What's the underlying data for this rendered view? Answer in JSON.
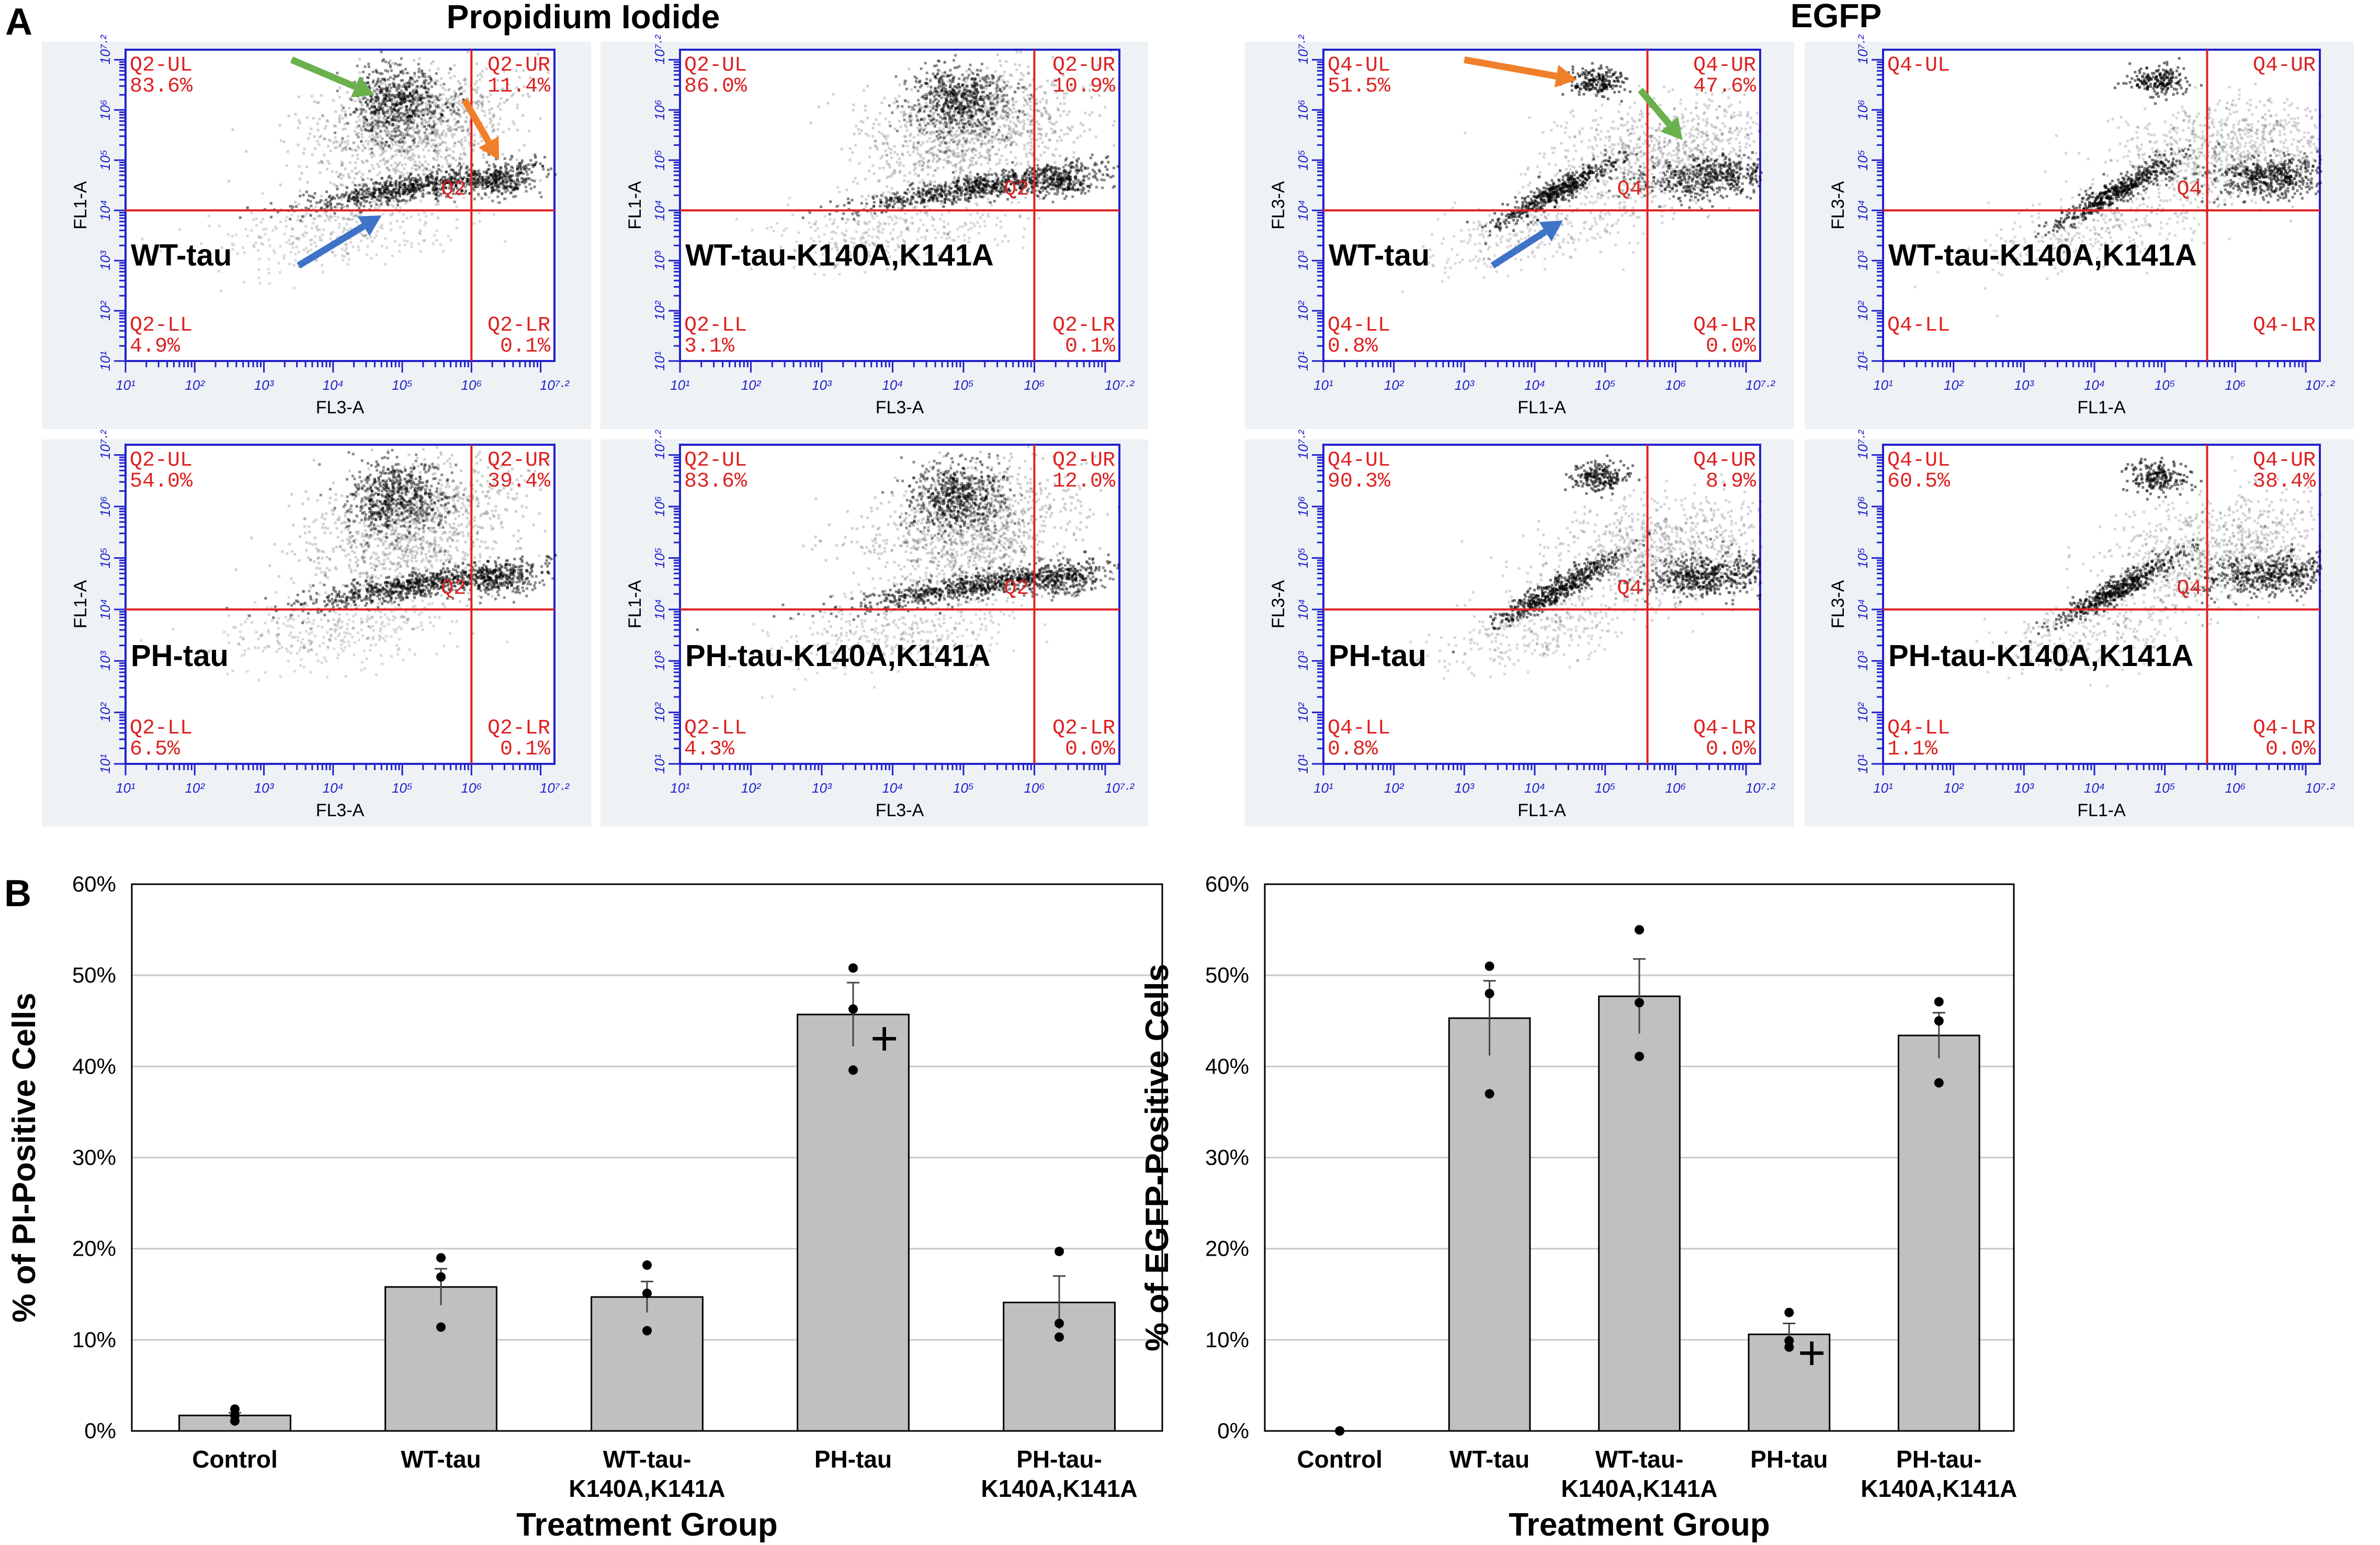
{
  "panel_a": {
    "letter": "A",
    "pi_title": "Propidium Iodide",
    "egfp_title": "EGFP",
    "flow_plots": [
      {
        "group": "pi",
        "row": 0,
        "col": 0,
        "sample": "WT-tau",
        "xlabel": "FL3-A",
        "ylabel": "FL1-A",
        "gate": "Q2",
        "ul": "Q2-UL",
        "ur": "Q2-UR",
        "ll": "Q2-LL",
        "lr": "Q2-LR",
        "ul_pct": "83.6%",
        "ur_pct": "11.4%",
        "ll_pct": "4.9%",
        "lr_pct": "0.1%",
        "arrows": [
          "green",
          "orange",
          "blue"
        ]
      },
      {
        "group": "pi",
        "row": 0,
        "col": 1,
        "sample": "WT-tau-K140A,K141A",
        "xlabel": "FL3-A",
        "ylabel": "FL1-A",
        "gate": "Q2",
        "ul": "Q2-UL",
        "ur": "Q2-UR",
        "ll": "Q2-LL",
        "lr": "Q2-LR",
        "ul_pct": "86.0%",
        "ur_pct": "10.9%",
        "ll_pct": "3.1%",
        "lr_pct": "0.1%",
        "arrows": []
      },
      {
        "group": "pi",
        "row": 1,
        "col": 0,
        "sample": "PH-tau",
        "xlabel": "FL3-A",
        "ylabel": "FL1-A",
        "gate": "Q2",
        "ul": "Q2-UL",
        "ur": "Q2-UR",
        "ll": "Q2-LL",
        "lr": "Q2-LR",
        "ul_pct": "54.0%",
        "ur_pct": "39.4%",
        "ll_pct": "6.5%",
        "lr_pct": "0.1%",
        "arrows": []
      },
      {
        "group": "pi",
        "row": 1,
        "col": 1,
        "sample": "PH-tau-K140A,K141A",
        "xlabel": "FL3-A",
        "ylabel": "FL1-A",
        "gate": "Q2",
        "ul": "Q2-UL",
        "ur": "Q2-UR",
        "ll": "Q2-LL",
        "lr": "Q2-LR",
        "ul_pct": "83.6%",
        "ur_pct": "12.0%",
        "ll_pct": "4.3%",
        "lr_pct": "0.0%",
        "arrows": []
      },
      {
        "group": "egfp",
        "row": 0,
        "col": 0,
        "sample": "WT-tau",
        "xlabel": "FL1-A",
        "ylabel": "FL3-A",
        "gate": "Q4",
        "ul": "Q4-UL",
        "ur": "Q4-UR",
        "ll": "Q4-LL",
        "lr": "Q4-LR",
        "ul_pct": "51.5%",
        "ur_pct": "47.6%",
        "ll_pct": "0.8%",
        "lr_pct": "0.0%",
        "arrows": [
          "orange",
          "green",
          "blue"
        ]
      },
      {
        "group": "egfp",
        "row": 0,
        "col": 1,
        "sample": "WT-tau-K140A,K141A",
        "xlabel": "FL1-A",
        "ylabel": "FL3-A",
        "gate": "Q4",
        "ul": "Q4-UL",
        "ur": "Q4-UR",
        "ll": "Q4-LL",
        "lr": "Q4-LR",
        "ul_pct": "",
        "ur_pct": "",
        "ll_pct": "",
        "lr_pct": "",
        "arrows": []
      },
      {
        "group": "egfp",
        "row": 1,
        "col": 0,
        "sample": "PH-tau",
        "xlabel": "FL1-A",
        "ylabel": "FL3-A",
        "gate": "Q4",
        "ul": "Q4-UL",
        "ur": "Q4-UR",
        "ll": "Q4-LL",
        "lr": "Q4-LR",
        "ul_pct": "90.3%",
        "ur_pct": "8.9%",
        "ll_pct": "0.8%",
        "lr_pct": "0.0%",
        "arrows": []
      },
      {
        "group": "egfp",
        "row": 1,
        "col": 1,
        "sample": "PH-tau-K140A,K141A",
        "xlabel": "FL1-A",
        "ylabel": "FL3-A",
        "gate": "Q4",
        "ul": "Q4-UL",
        "ur": "Q4-UR",
        "ll": "Q4-LL",
        "lr": "Q4-LR",
        "ul_pct": "60.5%",
        "ur_pct": "38.4%",
        "ll_pct": "1.1%",
        "lr_pct": "0.0%",
        "arrows": []
      }
    ],
    "log_ticks": [
      "10¹",
      "10²",
      "10³",
      "10⁴",
      "10⁵",
      "10⁶",
      "10⁷·²"
    ],
    "axis_range_log10": [
      1,
      7.2
    ],
    "gate_log10": {
      "pi": {
        "x": 6.0,
        "y": 4.0
      },
      "egfp": {
        "x": 5.6,
        "y": 4.0
      }
    }
  },
  "panel_b": {
    "letter": "B"
  },
  "colors": {
    "bar_fill": "#c0c0c0",
    "bar_stroke": "#000000",
    "grid": "#c8c8c8",
    "axis_blue": "#2222cc",
    "gate_red": "#dd2222",
    "arrow_green": "#6ab04c",
    "arrow_orange": "#f07f2a",
    "arrow_blue": "#3f73c8",
    "plot_bg": "#eef2f5"
  },
  "chart_data": [
    {
      "type": "bar",
      "title": "",
      "xlabel": "Treatment Group",
      "ylabel": "% of PI-Positive Cells",
      "ylim": [
        0,
        60
      ],
      "yticks": [
        0,
        10,
        20,
        30,
        40,
        50,
        60
      ],
      "ytick_labels": [
        "0%",
        "10%",
        "20%",
        "30%",
        "40%",
        "50%",
        "60%"
      ],
      "grid": true,
      "categories": [
        "Control",
        "WT-tau",
        "WT-tau-K140A,K141A",
        "PH-tau",
        "PH-tau-K140A,K141A"
      ],
      "category_lines": [
        [
          "Control"
        ],
        [
          "WT-tau"
        ],
        [
          "WT-tau-",
          "K140A,K141A"
        ],
        [
          "PH-tau"
        ],
        [
          "PH-tau-",
          "K140A,K141A"
        ]
      ],
      "values": [
        1.7,
        15.8,
        14.7,
        45.7,
        14.1
      ],
      "errors": [
        0.3,
        2.0,
        1.7,
        3.5,
        2.9
      ],
      "points": [
        [
          1.1,
          1.7,
          2.4
        ],
        [
          11.4,
          16.9,
          19.0
        ],
        [
          11.0,
          15.1,
          18.2
        ],
        [
          39.6,
          46.3,
          50.8
        ],
        [
          10.3,
          11.8,
          19.7
        ]
      ],
      "plus_marker": {
        "category": 3,
        "value": 43.0,
        "glyph": "+"
      }
    },
    {
      "type": "bar",
      "title": "",
      "xlabel": "Treatment Group",
      "ylabel": "% of EGFP-Positive Cells",
      "ylim": [
        0,
        60
      ],
      "yticks": [
        0,
        10,
        20,
        30,
        40,
        50,
        60
      ],
      "ytick_labels": [
        "0%",
        "10%",
        "20%",
        "30%",
        "40%",
        "50%",
        "60%"
      ],
      "grid": true,
      "categories": [
        "Control",
        "WT-tau",
        "WT-tau-K140A,K141A",
        "PH-tau",
        "PH-tau-K140A,K141A"
      ],
      "category_lines": [
        [
          "Control"
        ],
        [
          "WT-tau"
        ],
        [
          "WT-tau-",
          "K140A,K141A"
        ],
        [
          "PH-tau"
        ],
        [
          "PH-tau-",
          "K140A,K141A"
        ]
      ],
      "values": [
        0.0,
        45.3,
        47.7,
        10.6,
        43.4
      ],
      "errors": [
        0.0,
        4.1,
        4.1,
        1.2,
        2.5
      ],
      "points": [
        [
          0.0,
          0.0,
          0.0
        ],
        [
          37.0,
          48.0,
          51.0
        ],
        [
          41.1,
          47.0,
          55.0
        ],
        [
          9.2,
          9.9,
          13.0
        ],
        [
          38.2,
          45.0,
          47.1
        ]
      ],
      "plus_marker": {
        "category": 3,
        "value": 8.5,
        "glyph": "+"
      }
    }
  ]
}
